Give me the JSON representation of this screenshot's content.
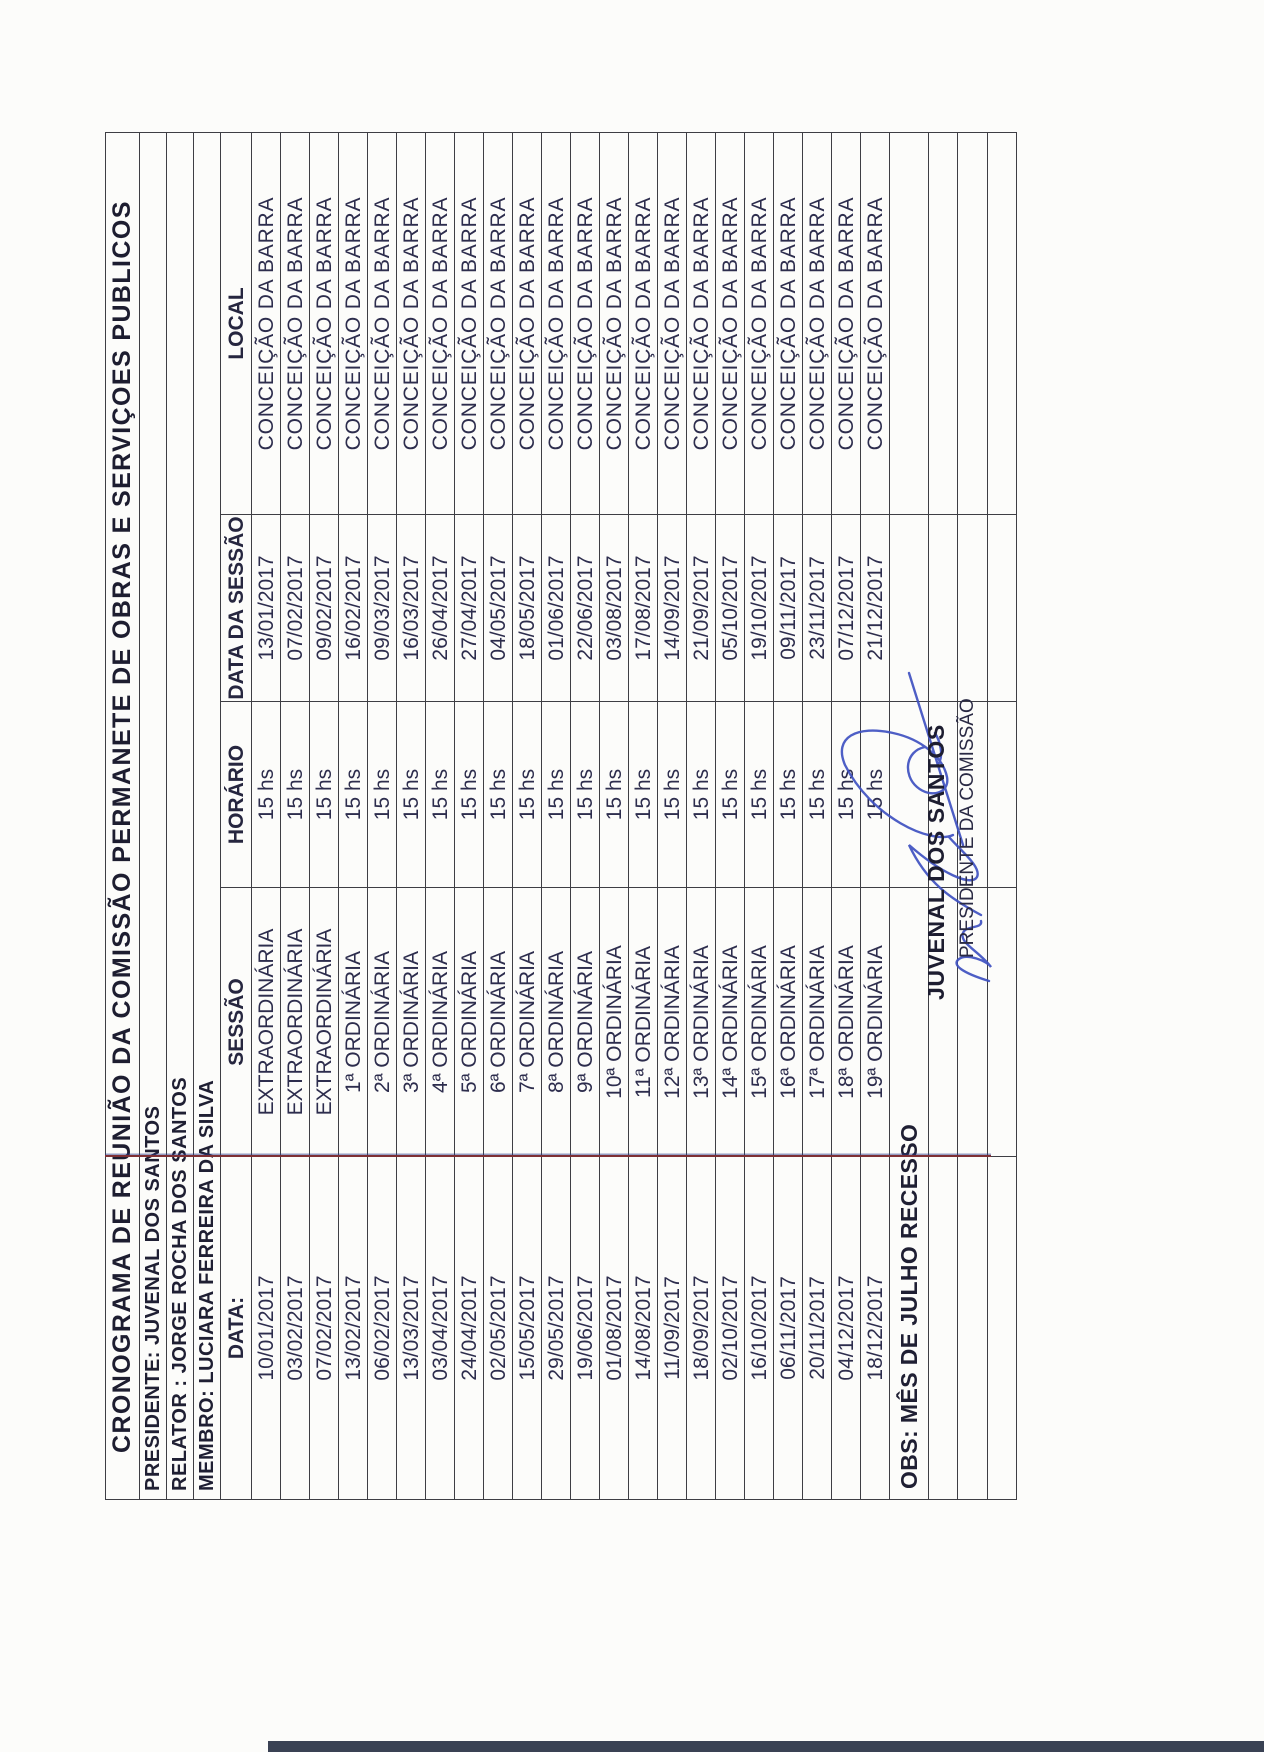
{
  "document": {
    "title": "CRONOGRAMA DE REUNIÃO DA COMISSÃO PERMANETE DE OBRAS E SERVIÇOES PUBLICOS",
    "officials": [
      "PRESIDENTE: JUVENAL DOS SANTOS",
      "RELATOR : JORGE ROCHA DOS SANTOS",
      "MEMBRO: LUCIARA FERREIRA DA SILVA"
    ],
    "table": {
      "headers": [
        "DATA:",
        "SESSÃO",
        "HORÁRIO",
        "DATA DA SESSÃO",
        "LOCAL"
      ],
      "rows": [
        [
          "10/01/2017",
          "EXTRAORDINÁRIA",
          "15 hs",
          "13/01/2017",
          "CONCEIÇÃO DA BARRA"
        ],
        [
          "03/02/2017",
          "EXTRAORDINÁRIA",
          "15 hs",
          "07/02/2017",
          "CONCEIÇÃO DA BARRA"
        ],
        [
          "07/02/2017",
          "EXTRAORDINÁRIA",
          "15 hs",
          "09/02/2017",
          "CONCEIÇÃO DA BARRA"
        ],
        [
          "13/02/2017",
          "1ª ORDINÁRIA",
          "15 hs",
          "16/02/2017",
          "CONCEIÇÃO DA BARRA"
        ],
        [
          "06/02/2017",
          "2ª ORDINÁRIA",
          "15 hs",
          "09/03/2017",
          "CONCEIÇÃO DA BARRA"
        ],
        [
          "13/03/2017",
          "3ª ORDINÁRIA",
          "15 hs",
          "16/03/2017",
          "CONCEIÇÃO DA BARRA"
        ],
        [
          "03/04/2017",
          "4ª ORDINÁRIA",
          "15 hs",
          "26/04/2017",
          "CONCEIÇÃO DA BARRA"
        ],
        [
          "24/04/2017",
          "5ª ORDINÁRIA",
          "15 hs",
          "27/04/2017",
          "CONCEIÇÃO DA BARRA"
        ],
        [
          "02/05/2017",
          "6ª ORDINÁRIA",
          "15 hs",
          "04/05/2017",
          "CONCEIÇÃO DA BARRA"
        ],
        [
          "15/05/2017",
          "7ª ORDINÁRIA",
          "15 hs",
          "18/05/2017",
          "CONCEIÇÃO DA BARRA"
        ],
        [
          "29/05/2017",
          "8ª ORDINÁRIA",
          "15 hs",
          "01/06/2017",
          "CONCEIÇÃO DA BARRA"
        ],
        [
          "19/06/2017",
          "9ª ORDINÁRIA",
          "15 hs",
          "22/06/2017",
          "CONCEIÇÃO DA BARRA"
        ],
        [
          "01/08/2017",
          "10ª ORDINÁRIA",
          "15 hs",
          "03/08/2017",
          "CONCEIÇÃO DA BARRA"
        ],
        [
          "14/08/2017",
          "11ª ORDINÁRIA",
          "15 hs",
          "17/08/2017",
          "CONCEIÇÃO DA BARRA"
        ],
        [
          "11/09/2017",
          "12ª ORDINÁRIA",
          "15 hs",
          "14/09/2017",
          "CONCEIÇÃO DA BARRA"
        ],
        [
          "18/09/2017",
          "13ª ORDINÁRIA",
          "15 hs",
          "21/09/2017",
          "CONCEIÇÃO DA BARRA"
        ],
        [
          "02/10/2017",
          "14ª ORDINÁRIA",
          "15 hs",
          "05/10/2017",
          "CONCEIÇÃO DA BARRA"
        ],
        [
          "16/10/2017",
          "15ª ORDINÁRIA",
          "15 hs",
          "19/10/2017",
          "CONCEIÇÃO DA BARRA"
        ],
        [
          "06/11/2017",
          "16ª ORDINÁRIA",
          "15 hs",
          "09/11/2017",
          "CONCEIÇÃO DA BARRA"
        ],
        [
          "20/11/2017",
          "17ª ORDINÁRIA",
          "15 hs",
          "23/11/2017",
          "CONCEIÇÃO DA BARRA"
        ],
        [
          "04/12/2017",
          "18ª ORDINÁRIA",
          "15 hs",
          "07/12/2017",
          "CONCEIÇÃO DA BARRA"
        ],
        [
          "18/12/2017",
          "19ª ORDINÁRIA",
          "15 hs",
          "21/12/2017",
          "CONCEIÇÃO DA BARRA"
        ]
      ]
    },
    "obs": "OBS: MÊS DE JULHO RECESSO",
    "signature": {
      "name": "JUVENAL DOS SANTOS",
      "role": "PRESIDENTE DA COMISSÃO"
    },
    "colors": {
      "ink_text": "#2d2d4d",
      "grid_line": "#3e3e44",
      "accent_rule": "#7e2f34",
      "signature_ink": "#3f51c1",
      "scan_edge": "#3a4254"
    }
  }
}
